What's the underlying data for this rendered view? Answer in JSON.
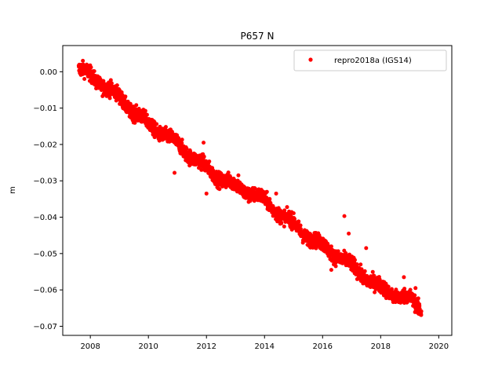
{
  "chart_data": {
    "type": "scatter",
    "title": "P657 N",
    "xlabel": "",
    "ylabel": "m",
    "xlim": [
      2007.05,
      2020.45
    ],
    "ylim": [
      -0.0725,
      0.0072
    ],
    "xticks": [
      2008,
      2010,
      2012,
      2014,
      2016,
      2018,
      2020
    ],
    "xtick_labels": [
      "2008",
      "2010",
      "2012",
      "2014",
      "2016",
      "2018",
      "2020"
    ],
    "yticks": [
      0.0,
      -0.01,
      -0.02,
      -0.03,
      -0.04,
      -0.05,
      -0.06,
      -0.07
    ],
    "ytick_labels": [
      "0.00",
      "−0.01",
      "−0.02",
      "−0.03",
      "−0.04",
      "−0.05",
      "−0.06",
      "−0.07"
    ],
    "grid": false,
    "legend_position": "top-right",
    "series": [
      {
        "name": "repro2018a (IGS14)",
        "color": "#ff0000",
        "marker": "circle",
        "trend_points": {
          "x": [
            2007.6,
            2008.0,
            2009.0,
            2010.0,
            2011.0,
            2012.0,
            2013.0,
            2014.0,
            2015.0,
            2016.0,
            2017.0,
            2018.0,
            2019.0,
            2019.4
          ],
          "y": [
            0.0,
            -0.0015,
            -0.0065,
            -0.0145,
            -0.0205,
            -0.026,
            -0.0315,
            -0.036,
            -0.0415,
            -0.048,
            -0.054,
            -0.059,
            -0.0625,
            -0.066
          ]
        },
        "scatter_spread": 0.0022,
        "outliers": {
          "x": [
            2010.9,
            2011.9,
            2012.0,
            2013.1,
            2014.4,
            2015.5,
            2016.3,
            2016.75,
            2016.9,
            2017.5,
            2018.8,
            2019.2
          ],
          "y": [
            -0.0278,
            -0.0195,
            -0.0335,
            -0.0285,
            -0.0335,
            -0.0448,
            -0.0545,
            -0.0397,
            -0.0445,
            -0.0485,
            -0.0565,
            -0.0595
          ]
        }
      }
    ]
  }
}
